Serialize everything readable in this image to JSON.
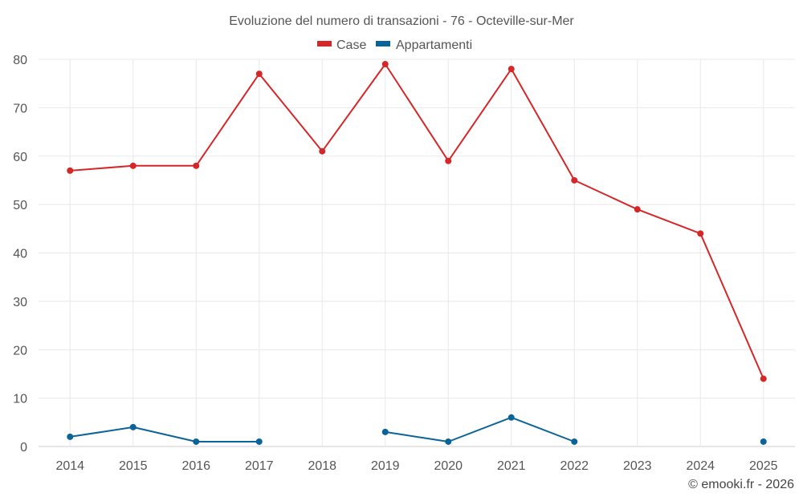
{
  "chart_data": {
    "type": "line",
    "title": "Evoluzione del numero di transazioni - 76 - Octeville-sur-Mer",
    "categories": [
      "2014",
      "2015",
      "2016",
      "2017",
      "2018",
      "2019",
      "2020",
      "2021",
      "2022",
      "2023",
      "2024",
      "2025"
    ],
    "series": [
      {
        "name": "Case",
        "color": "#d62728",
        "values": [
          57,
          58,
          58,
          77,
          61,
          79,
          59,
          78,
          55,
          49,
          44,
          14
        ]
      },
      {
        "name": "Appartamenti",
        "color": "#0a6399",
        "values": [
          2,
          4,
          1,
          1,
          null,
          3,
          1,
          6,
          1,
          null,
          null,
          1
        ]
      }
    ],
    "ylim": [
      0,
      80
    ],
    "yticks": [
      "0",
      "10",
      "20",
      "30",
      "40",
      "50",
      "60",
      "70",
      "80"
    ],
    "grid": true,
    "legend": "top-center",
    "xlabel": "",
    "ylabel": ""
  },
  "credit": "© emooki.fr - 2026"
}
